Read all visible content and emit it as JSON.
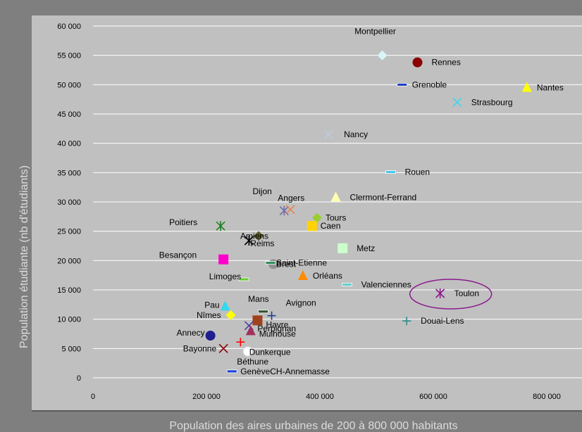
{
  "colors": {
    "page_bg": "#7f7f7f",
    "plot_bg": "#c0c0c0",
    "grid": "#ffffff",
    "axis_title": "#dcdcdc",
    "highlight": "#8b1a8b"
  },
  "chart_data": {
    "type": "scatter",
    "title": "",
    "xlabel": "Population des aires urbaines de 200 à 800 000 habitants",
    "ylabel": "Population étudiante (nb d'étudiants)",
    "xlim": [
      0,
      800000
    ],
    "ylim": [
      0,
      60000
    ],
    "xticks": [
      0,
      200000,
      400000,
      600000,
      800000
    ],
    "xtick_labels": [
      "0",
      "200 000",
      "400 000",
      "600 000",
      "800 000"
    ],
    "yticks": [
      0,
      5000,
      10000,
      15000,
      20000,
      25000,
      30000,
      35000,
      40000,
      45000,
      50000,
      55000,
      60000
    ],
    "ytick_labels": [
      "0",
      "5 000",
      "10 000",
      "15 000",
      "20 000",
      "25 000",
      "30 000",
      "35 000",
      "40 000",
      "45 000",
      "50 000",
      "55 000",
      "60 000"
    ],
    "grid": "horizontal",
    "legend": "none",
    "highlighted_point": "Toulon",
    "points": [
      {
        "name": "Montpellier",
        "x": 510000,
        "y": 55000,
        "marker": "diamond",
        "color": "#d9f4f7"
      },
      {
        "name": "Rennes",
        "x": 572000,
        "y": 53800,
        "marker": "circle",
        "color": "#8b0000"
      },
      {
        "name": "Grenoble",
        "x": 545000,
        "y": 50000,
        "marker": "dash",
        "color": "#1f3fbf"
      },
      {
        "name": "Nantes",
        "x": 765000,
        "y": 49500,
        "marker": "triangle",
        "color": "#ffff00"
      },
      {
        "name": "Strasbourg",
        "x": 642000,
        "y": 47000,
        "marker": "x",
        "color": "#3ad6ee"
      },
      {
        "name": "Nancy",
        "x": 415000,
        "y": 41500,
        "marker": "x",
        "color": "#bfc9df"
      },
      {
        "name": "Rouen",
        "x": 525000,
        "y": 35100,
        "marker": "dash",
        "color": "#49c7ee"
      },
      {
        "name": "Clermont-Ferrand",
        "x": 428000,
        "y": 30800,
        "marker": "triangle",
        "color": "#ffffb0"
      },
      {
        "name": "Angers",
        "x": 337000,
        "y": 28500,
        "marker": "star",
        "color": "#6f6fa8"
      },
      {
        "name": "Dijon",
        "x": 348000,
        "y": 28700,
        "marker": "x",
        "color": "#e8824e"
      },
      {
        "name": "Tours",
        "x": 395000,
        "y": 27300,
        "marker": "diamond",
        "color": "#9acd32"
      },
      {
        "name": "Poitiers",
        "x": 225000,
        "y": 25900,
        "marker": "star",
        "color": "#1e7d1e"
      },
      {
        "name": "Caen",
        "x": 386000,
        "y": 25900,
        "marker": "square",
        "color": "#ffd200"
      },
      {
        "name": "Amiens",
        "x": 292000,
        "y": 24200,
        "marker": "diamond",
        "color": "#5a5a28"
      },
      {
        "name": "Reims",
        "x": 275000,
        "y": 23400,
        "marker": "star",
        "color": "#000000"
      },
      {
        "name": "Metz",
        "x": 440000,
        "y": 22100,
        "marker": "square",
        "color": "#ccffcc"
      },
      {
        "name": "Besançon",
        "x": 230000,
        "y": 20200,
        "marker": "square",
        "color": "#ff00cc"
      },
      {
        "name": "Brest",
        "x": 318000,
        "y": 19400,
        "marker": "circle",
        "color": "#909090"
      },
      {
        "name": "Saint-Etienne",
        "x": 313000,
        "y": 19600,
        "marker": "dash",
        "color": "#2e8b57"
      },
      {
        "name": "Orléans",
        "x": 370000,
        "y": 17400,
        "marker": "triangle",
        "color": "#ff8c00"
      },
      {
        "name": "Limoges",
        "x": 266000,
        "y": 16800,
        "marker": "dash",
        "color": "#66cc33"
      },
      {
        "name": "Valenciennes",
        "x": 448000,
        "y": 15900,
        "marker": "dash",
        "color": "#66cccc"
      },
      {
        "name": "Toulon",
        "x": 612000,
        "y": 14400,
        "marker": "star",
        "color": "#8b1a8b"
      },
      {
        "name": "Pau",
        "x": 233000,
        "y": 12200,
        "marker": "triangle",
        "color": "#33d9f0"
      },
      {
        "name": "Mans",
        "x": 300000,
        "y": 11300,
        "marker": "dash",
        "color": "#2f4f2f"
      },
      {
        "name": "Avignon",
        "x": 315000,
        "y": 10600,
        "marker": "plus",
        "color": "#1f3f8f"
      },
      {
        "name": "Nîmes",
        "x": 243000,
        "y": 10700,
        "marker": "diamond",
        "color": "#ffff00"
      },
      {
        "name": "Havre",
        "x": 290000,
        "y": 9800,
        "marker": "square",
        "color": "#a0421f"
      },
      {
        "name": "Douai-Lens",
        "x": 553000,
        "y": 9700,
        "marker": "plus",
        "color": "#2e8b8b"
      },
      {
        "name": "Perpignan",
        "x": 275000,
        "y": 8900,
        "marker": "x",
        "color": "#4b3f9f"
      },
      {
        "name": "Mulhouse",
        "x": 278000,
        "y": 8000,
        "marker": "triangle",
        "color": "#a0305f"
      },
      {
        "name": "Annecy",
        "x": 207000,
        "y": 7200,
        "marker": "circle",
        "color": "#1f1f8f"
      },
      {
        "name": "Béthune",
        "x": 260000,
        "y": 6100,
        "marker": "plus",
        "color": "#ff0000"
      },
      {
        "name": "Bayonne",
        "x": 230000,
        "y": 5000,
        "marker": "x",
        "color": "#8b0000"
      },
      {
        "name": "Dunkerque",
        "x": 273000,
        "y": 4500,
        "marker": "circle",
        "color": "#ffffff"
      },
      {
        "name": "GenèveCH-Annemasse",
        "x": 245000,
        "y": 1100,
        "marker": "dash",
        "color": "#1f3fdf"
      }
    ]
  }
}
